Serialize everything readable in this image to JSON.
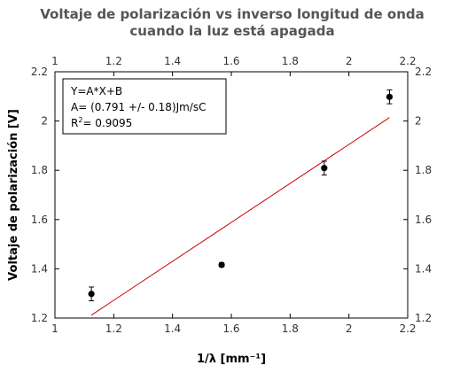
{
  "chart_data": {
    "type": "scatter",
    "title_line1": "Voltaje de polarización vs inverso longitud de onda",
    "title_line2": "cuando la luz está apagada",
    "xlabel": "1/λ [mm⁻¹]",
    "ylabel": "Voltaje de polarización [V]",
    "xlim": [
      1,
      2.2
    ],
    "ylim": [
      1.2,
      2.2
    ],
    "x_ticks": [
      1,
      1.2,
      1.4,
      1.6,
      1.8,
      2,
      2.2
    ],
    "y_ticks": [
      1.2,
      1.4,
      1.6,
      1.8,
      2,
      2.2
    ],
    "x_tick_labels": [
      "1",
      "1.2",
      "1.4",
      "1.6",
      "1.8",
      "2",
      "2.2"
    ],
    "y_tick_labels": [
      "1.2",
      "1.4",
      "1.6",
      "1.8",
      "2",
      "2.2"
    ],
    "grid": false,
    "mirrored_axes": true,
    "points": [
      {
        "x": 1.124,
        "y": 1.298,
        "yerr": 0.028
      },
      {
        "x": 1.567,
        "y": 1.416,
        "yerr": 0.008
      },
      {
        "x": 1.916,
        "y": 1.809,
        "yerr": 0.028
      },
      {
        "x": 2.138,
        "y": 2.098,
        "yerr": 0.028
      }
    ],
    "fit_line": {
      "x0": 1.124,
      "y0": 1.212,
      "x1": 2.138,
      "y1": 2.014,
      "color": "#cc0000"
    },
    "point_color": "#000000",
    "legend": {
      "placement": "top-left",
      "line1": "Y=A*X+B",
      "line2": "A= (0.791 +/- 0.18)Jm/sC",
      "line3_prefix": "R",
      "line3_sup": "2",
      "line3_suffix": "= 0.9095"
    }
  }
}
